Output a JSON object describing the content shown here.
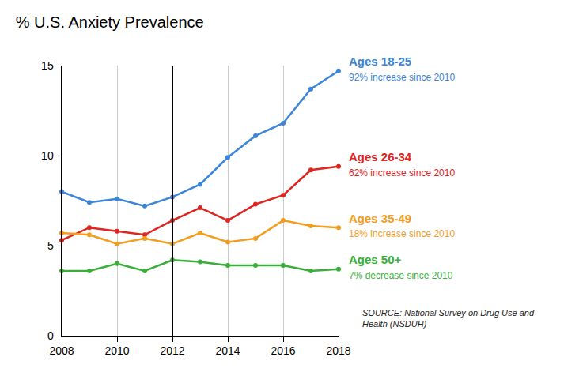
{
  "chart_data": {
    "type": "line",
    "title": "% U.S. Anxiety Prevalence",
    "x": [
      2008,
      2009,
      2010,
      2011,
      2012,
      2013,
      2014,
      2015,
      2016,
      2017,
      2018
    ],
    "series": [
      {
        "name": "Ages 18-25",
        "color": "#3d85d8",
        "annotation": "92% increase since 2010",
        "values": [
          8.0,
          7.4,
          7.6,
          7.2,
          7.7,
          8.4,
          9.9,
          11.1,
          11.8,
          13.7,
          14.7
        ]
      },
      {
        "name": "Ages 26-34",
        "color": "#e0241f",
        "annotation": "62% increase since 2010",
        "values": [
          5.3,
          6.0,
          5.8,
          5.6,
          6.4,
          7.1,
          6.4,
          7.3,
          7.8,
          9.2,
          9.4
        ]
      },
      {
        "name": "Ages 35-49",
        "color": "#f29d1f",
        "annotation": "18% increase since 2010",
        "values": [
          5.7,
          5.6,
          5.1,
          5.4,
          5.1,
          5.7,
          5.2,
          5.4,
          6.4,
          6.1,
          6.0
        ]
      },
      {
        "name": "Ages 50+",
        "color": "#3aae3a",
        "annotation": "7% decrease since 2010",
        "values": [
          3.6,
          3.6,
          4.0,
          3.6,
          4.2,
          4.1,
          3.9,
          3.9,
          3.9,
          3.6,
          3.7
        ]
      }
    ],
    "xlim": [
      2008,
      2018
    ],
    "xticks": [
      2008,
      2010,
      2012,
      2014,
      2016,
      2018
    ],
    "ylim": [
      0,
      15
    ],
    "yticks": [
      0,
      5,
      10,
      15
    ],
    "reference_line": 2012,
    "source": [
      "SOURCE: National Survey on Drug Use and",
      "Health (NSDUH)"
    ],
    "grid": "x",
    "marker": "circle"
  }
}
